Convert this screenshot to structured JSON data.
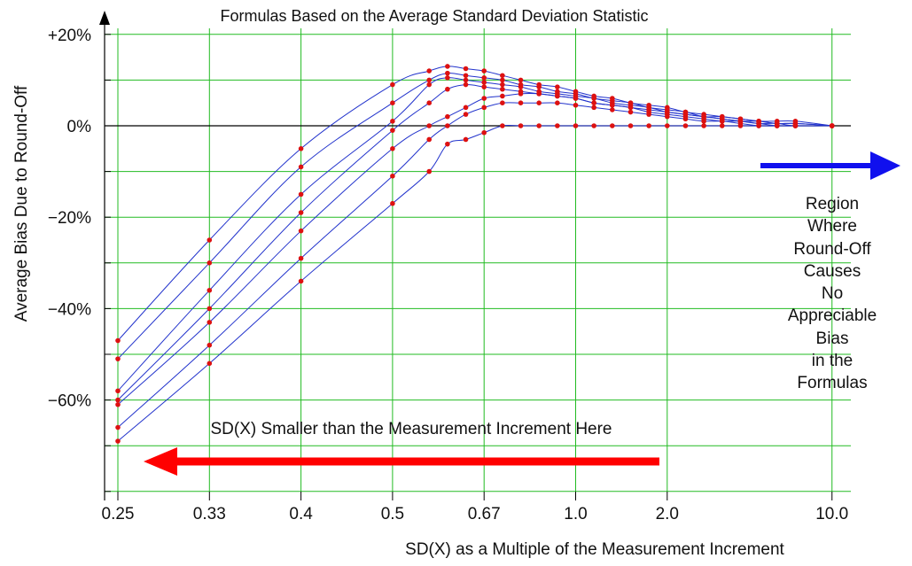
{
  "chart_data": {
    "type": "line",
    "title": "Formulas Based on the Average Standard Deviation Statistic",
    "xlabel": "SD(X) as a Multiple of the Measurement Increment",
    "ylabel": "Average Bias Due to Round-Off",
    "x_tick_labels": [
      "0.25",
      "0.33",
      "0.4",
      "0.5",
      "0.67",
      "1.0",
      "2.0",
      "10.0"
    ],
    "y_tick_labels": [
      "+20%",
      "0%",
      "−20%",
      "−40%",
      "−60%"
    ],
    "y_ticks": [
      20,
      0,
      -20,
      -40,
      -60
    ],
    "ylim": [
      -80,
      20
    ],
    "grid": true,
    "annotations": {
      "left_arrow_label": "SD(X) Smaller than  the Measurement Increment Here",
      "right_region_lines": [
        "Region",
        "Where",
        "Round-Off",
        "Causes",
        "No",
        "Appreciable",
        "Bias",
        "in the",
        "Formulas"
      ]
    },
    "colors": {
      "grid": "#22bb22",
      "curve": "#2233cc",
      "point": "#dd1111",
      "left_arrow": "#ff0000",
      "right_arrow": "#1010ee"
    },
    "x_positions": [
      0,
      1,
      2,
      3,
      3.4,
      3.6,
      3.8,
      4.0,
      4.2,
      4.4,
      4.6,
      4.8,
      5.0,
      5.2,
      5.4,
      5.6,
      5.8,
      6.0,
      6.2,
      6.4,
      6.6,
      6.8,
      7.0,
      7.2,
      7.4,
      7.8
    ],
    "series": [
      {
        "values": [
          -47,
          -25,
          -5,
          9,
          12,
          13,
          12.5,
          12,
          11,
          10,
          9,
          8.5,
          7.5,
          6.5,
          6,
          5,
          4.5,
          4,
          3,
          2.5,
          2,
          1.5,
          1,
          1,
          1,
          0
        ]
      },
      {
        "values": [
          -51,
          -30,
          -9,
          5,
          10,
          11.5,
          11,
          10.5,
          10,
          9,
          8.5,
          7.5,
          7,
          6,
          5.5,
          5,
          4,
          3.5,
          3,
          2,
          2,
          1.5,
          1,
          0.5,
          0.5,
          0
        ]
      },
      {
        "values": [
          -58,
          -36,
          -15,
          1,
          9,
          10.5,
          10,
          9.5,
          9,
          8.5,
          7.5,
          7,
          6.5,
          6,
          5,
          4.5,
          4,
          3,
          2.5,
          2,
          1.5,
          1,
          1,
          0.5,
          0.5,
          0
        ]
      },
      {
        "values": [
          -60,
          -40,
          -19,
          -1,
          5,
          8,
          9,
          8.5,
          8,
          7.5,
          7,
          6.5,
          6,
          5,
          4.5,
          4,
          3.5,
          3,
          2.5,
          2,
          1.5,
          1,
          0.5,
          0.5,
          0,
          0
        ]
      },
      {
        "values": [
          -61,
          -43,
          -23,
          -5,
          0,
          2,
          4,
          6,
          6.5,
          7,
          7,
          6.5,
          6,
          5,
          4.5,
          4,
          3,
          2.5,
          2,
          1.5,
          1,
          1,
          0.5,
          0,
          0,
          0
        ]
      },
      {
        "values": [
          -66,
          -48,
          -29,
          -11,
          -3,
          0,
          2.5,
          4,
          5,
          5,
          5,
          5,
          4.5,
          4,
          3.5,
          3,
          2.5,
          2,
          1.5,
          1,
          1,
          0.5,
          0,
          0,
          0,
          0
        ]
      },
      {
        "values": [
          -69,
          -52,
          -34,
          -17,
          -10,
          -4,
          -3,
          -1.5,
          0,
          0,
          0,
          0,
          0,
          0,
          0,
          0,
          0,
          0,
          0,
          0,
          0,
          0,
          0,
          0,
          0,
          0
        ]
      }
    ]
  }
}
